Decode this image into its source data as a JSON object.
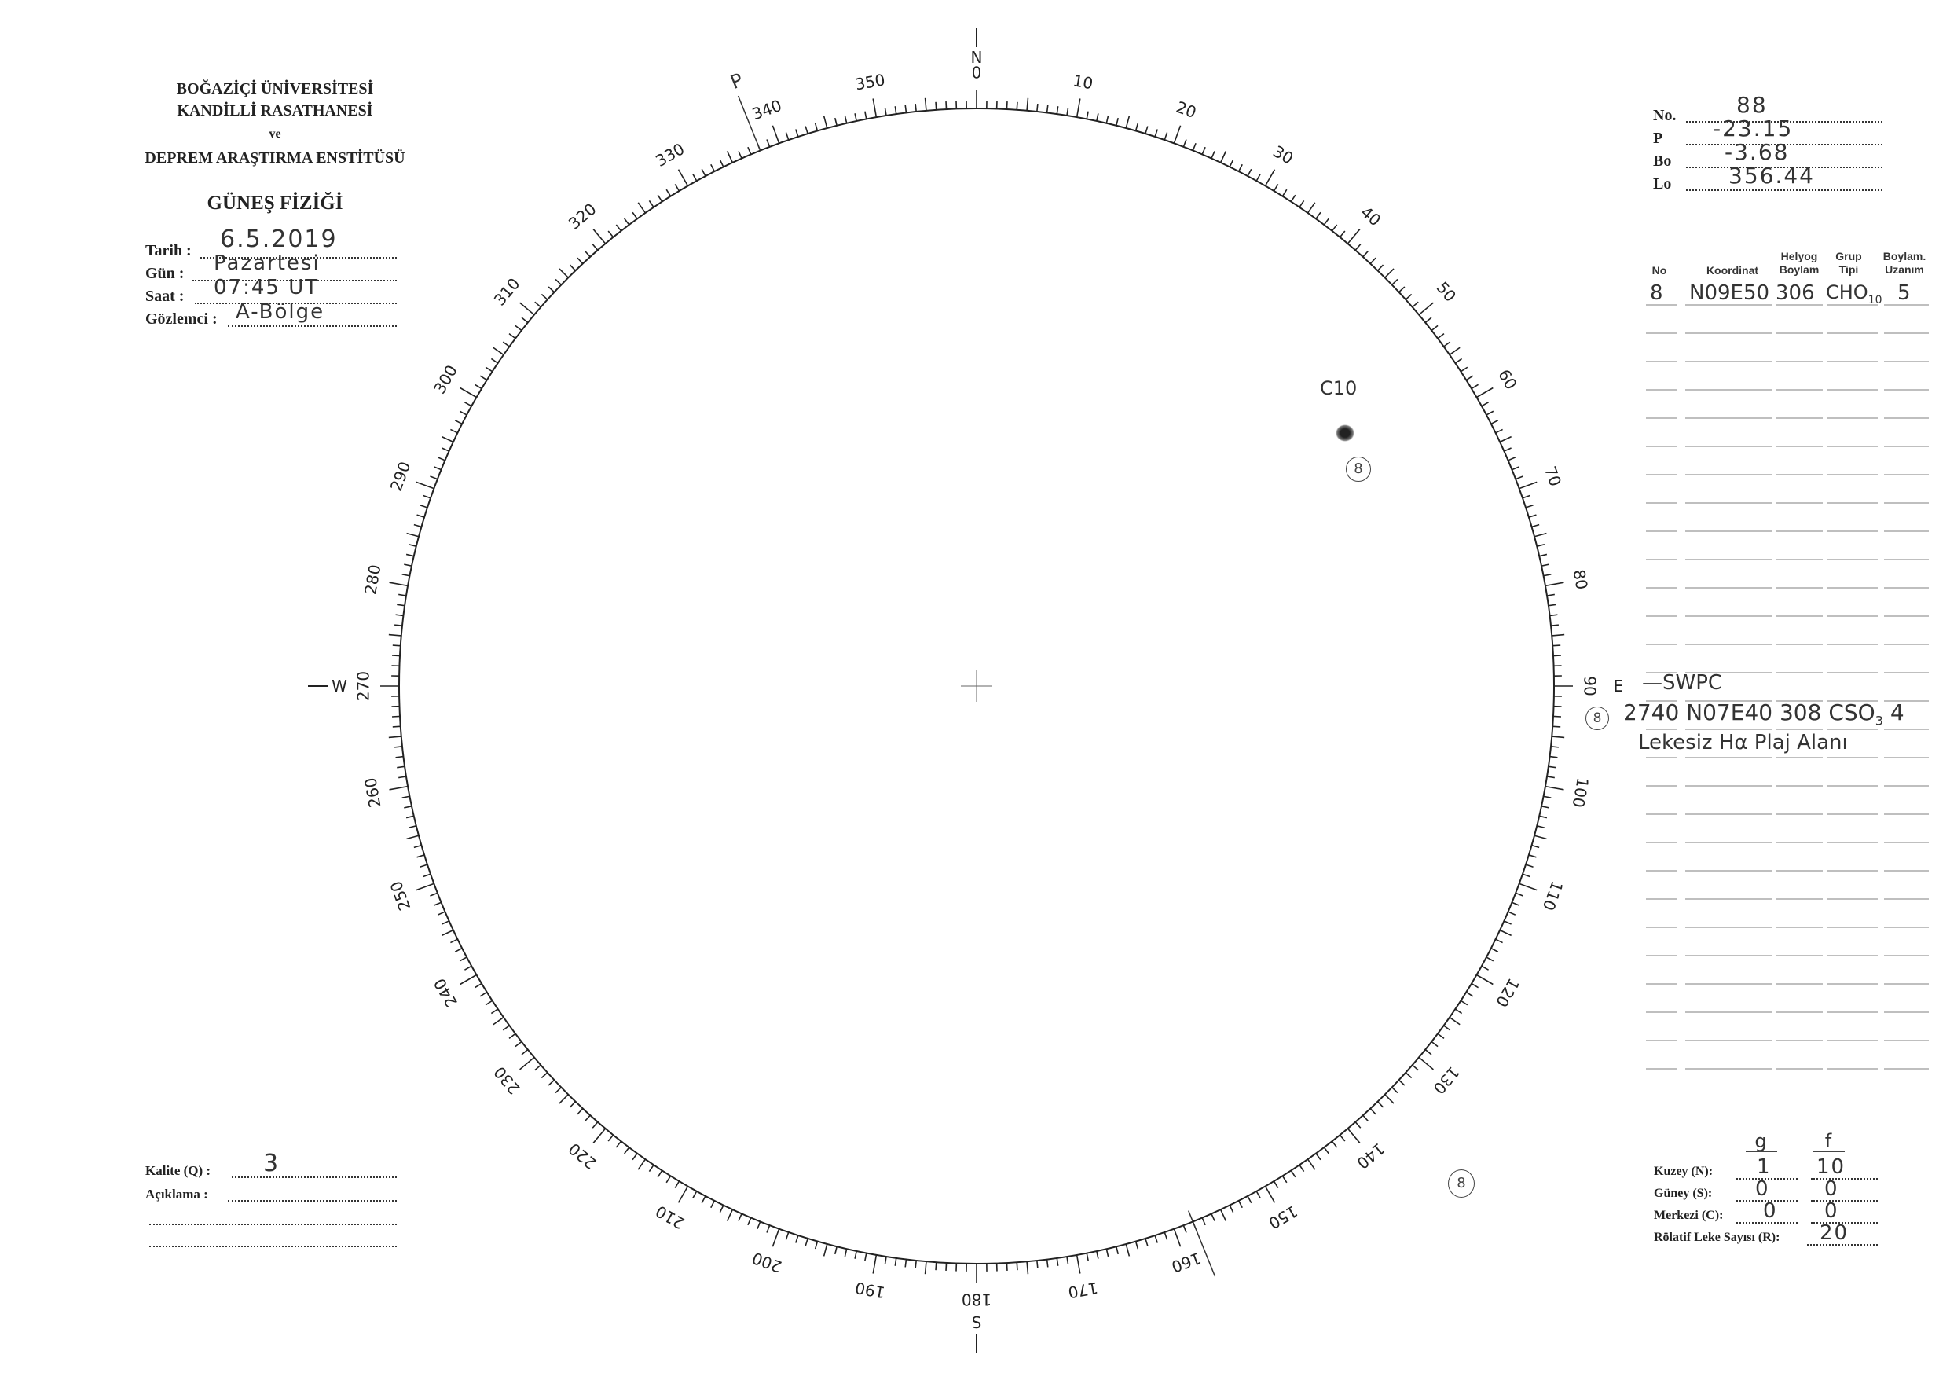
{
  "header": {
    "institution": [
      "BOĞAZİÇİ ÜNİVERSİTESİ",
      "KANDİLLİ RASATHANESİ",
      "ve",
      "DEPREM ARAŞTIRMA ENSTİTÜSÜ"
    ],
    "department": "GÜNEŞ FİZİĞİ"
  },
  "observation": {
    "date_label": "Tarih :",
    "date": "6.5.2019",
    "day_label": "Gün :",
    "day": "Pazartesi",
    "time_label": "Saat :",
    "time": "07:45 UT",
    "observer_label": "Gözlemci :",
    "observer": "A-Bölge"
  },
  "ephemeris": {
    "no_label": "No.",
    "no": "88",
    "p_label": "P",
    "p": "-23.15",
    "bo_label": "Bo",
    "bo": "-3.68",
    "lo_label": "Lo",
    "lo": "356.44"
  },
  "table": {
    "headers": [
      "No",
      "Koordinat",
      "Helyog Boylam",
      "Grup Tipi",
      "Boylam. Uzanım"
    ],
    "rows": [
      {
        "no": "8",
        "coord": "N09E50",
        "long": "306",
        "type": "CHO",
        "type_sub": "10",
        "ext": "5"
      }
    ],
    "swpc_label": "—SWPC",
    "swpc_row": {
      "no": "8",
      "region": "2740",
      "coord": "N07E40",
      "long": "308",
      "type": "CSO",
      "type_sub": "3",
      "ext": "4"
    },
    "note": "Lekesiz Hα Plaj Alanı"
  },
  "dial": {
    "labels": [
      "0",
      "10",
      "20",
      "30",
      "40",
      "50",
      "60",
      "70",
      "80",
      "90",
      "100",
      "110",
      "120",
      "130",
      "140",
      "150",
      "160",
      "170",
      "180",
      "190",
      "200",
      "210",
      "220",
      "230",
      "240",
      "250",
      "260",
      "270",
      "280",
      "290",
      "300",
      "310",
      "320",
      "330",
      "340",
      "350"
    ],
    "north": "N",
    "south": "S",
    "east": "E",
    "west": "W",
    "p_mark": "P"
  },
  "sunspot": {
    "label": "C10",
    "group_no": "8"
  },
  "quality": {
    "label": "Kalite (Q) :",
    "value": "3",
    "comment_label": "Açıklama :"
  },
  "counts": {
    "g_label": "g",
    "f_label": "f",
    "north_label": "Kuzey (N):",
    "north_g": "1",
    "north_f": "10",
    "south_label": "Güney (S):",
    "south_g": "0",
    "south_f": "0",
    "center_label": "Merkezi (C):",
    "center_g": "0",
    "center_f": "0",
    "r_label": "Rölatif Leke Sayısı (R):",
    "r": "20"
  }
}
